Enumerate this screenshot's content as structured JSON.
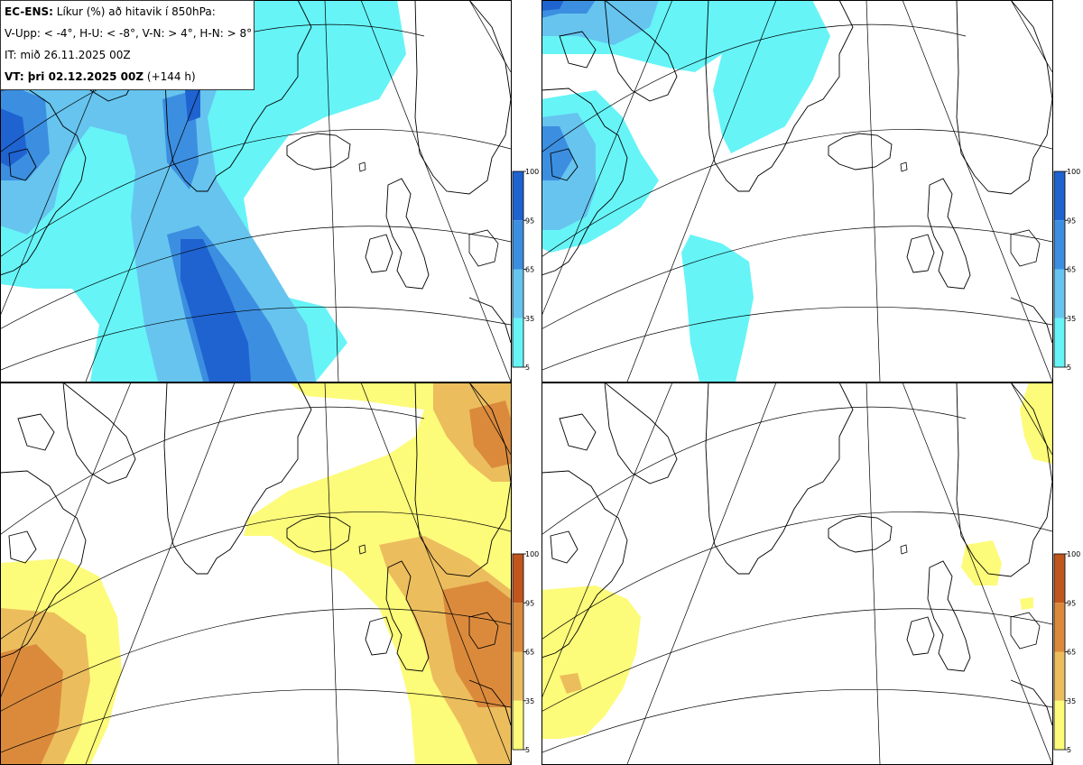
{
  "legend": {
    "title_bold": "EC-ENS:",
    "title_rest": " Líkur (%) að hitavik í 850hPa:",
    "criteria": "V-Upp: < -4°, H-U: < -8°, V-N: > 4°, H-N: > 8°",
    "init_time": "IT: mið 26.11.2025 00Z",
    "valid_bold": "VT: þri 02.12.2025 00Z",
    "valid_rest": " (+144 h)"
  },
  "panels": [
    {
      "id": "V-Upp",
      "description": "Probability of 850hPa temperature anomaly < -4°",
      "palette": "blue"
    },
    {
      "id": "H-U",
      "description": "Probability of 850hPa temperature anomaly < -8°",
      "palette": "blue"
    },
    {
      "id": "V-N",
      "description": "Probability of 850hPa temperature anomaly > 4°",
      "palette": "orange"
    },
    {
      "id": "H-N",
      "description": "Probability of 850hPa temperature anomaly > 8°",
      "palette": "orange"
    }
  ],
  "colorbar": {
    "ticks": [
      "100",
      "95",
      "65",
      "35",
      "5"
    ],
    "blue": [
      "#1f63d1",
      "#3c8fe0",
      "#66c4ef",
      "#66f4f7"
    ],
    "orange": [
      "#c0561e",
      "#db8a3c",
      "#ecbd5d",
      "#fdfb7a"
    ]
  }
}
